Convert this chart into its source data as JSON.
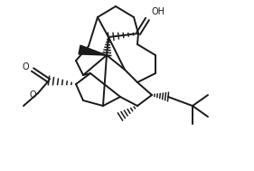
{
  "background": "#ffffff",
  "line_color": "#1a1a1a",
  "line_width": 1.4,
  "figsize": [
    2.81,
    1.89
  ],
  "dpi": 100,
  "xlim": [
    0,
    281
  ],
  "ylim": [
    0,
    189
  ]
}
